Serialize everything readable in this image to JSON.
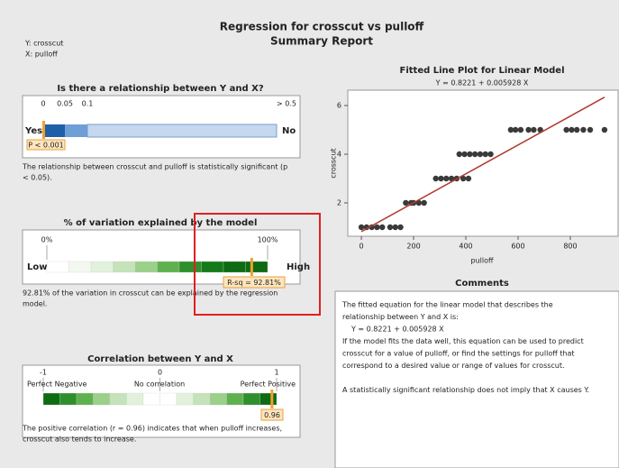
{
  "header": {
    "title": "Regression for crosscut vs pulloff",
    "subtitle": "Summary Report",
    "y_var": "Y: crosscut",
    "x_var": "X: pulloff"
  },
  "relationship": {
    "title": "Is there a relationship between Y and X?",
    "scale_labels": [
      "0",
      "0.05",
      "0.1",
      "> 0.5"
    ],
    "yes": "Yes",
    "no": "No",
    "p_label": "P < 0.001",
    "text": [
      "The relationship between crosscut and pulloff is statistically significant (p",
      "< 0.05)."
    ]
  },
  "variation": {
    "title": "% of variation explained by the model",
    "ticks": [
      {
        "value": 0,
        "label": "0%"
      },
      {
        "value": 100,
        "label": "100%"
      }
    ],
    "low": "Low",
    "high": "High",
    "value": 92.81,
    "value_label": "R-sq = 92.81%",
    "text": [
      "92.81% of the variation in crosscut can be explained by the regression",
      "model."
    ]
  },
  "correlation": {
    "title": "Correlation between Y and X",
    "ticks": [
      -1,
      0,
      1
    ],
    "labels": [
      "Perfect Negative",
      "No correlation",
      "Perfect Positive"
    ],
    "value": 0.96,
    "text": [
      "The positive correlation (r = 0.96) indicates that when pulloff increases,",
      "crosscut also tends to increase."
    ]
  },
  "fitted_plot": {
    "type": "scatter",
    "title": "Fitted Line Plot for Linear Model",
    "equation": "Y = 0.8221 + 0.005928 X",
    "intercept": 0.8221,
    "slope": 0.005928,
    "x_label": "pulloff",
    "y_label": "crosscut",
    "x": [
      0,
      20,
      40,
      60,
      80,
      110,
      130,
      150,
      170,
      190,
      200,
      220,
      240,
      285,
      305,
      325,
      345,
      365,
      390,
      410,
      375,
      395,
      415,
      435,
      455,
      475,
      495,
      572,
      590,
      610,
      640,
      660,
      685,
      785,
      805,
      825,
      850,
      876,
      931
    ],
    "y": [
      1,
      1,
      1,
      1,
      1,
      1,
      1,
      1,
      2,
      2,
      2,
      2,
      2,
      3,
      3,
      3,
      3,
      3,
      3,
      3,
      4,
      4,
      4,
      4,
      4,
      4,
      4,
      5,
      5,
      5,
      5,
      5,
      5,
      5,
      5,
      5,
      5,
      5,
      5
    ],
    "xlim": [
      -52,
      983
    ],
    "ylim": [
      0.63,
      6.63
    ],
    "xticks": [
      0,
      200,
      400,
      600,
      800
    ],
    "yticks": [
      2,
      4,
      6
    ],
    "color": "#3a3a3a",
    "line_color": "#b03a2e"
  },
  "comments": {
    "title": "Comments",
    "lines": [
      "The fitted equation for the linear model that describes the",
      "relationship between Y and X is:",
      "Y = 0.8221 + 0.005928 X",
      "If the model fits the data well, this equation can be used to predict",
      "crosscut for a value of pulloff, or find the settings for pulloff that",
      "correspond to a desired value or range of values for crosscut."
    ],
    "note": "A statistically significant relationship does not imply that X causes Y."
  }
}
